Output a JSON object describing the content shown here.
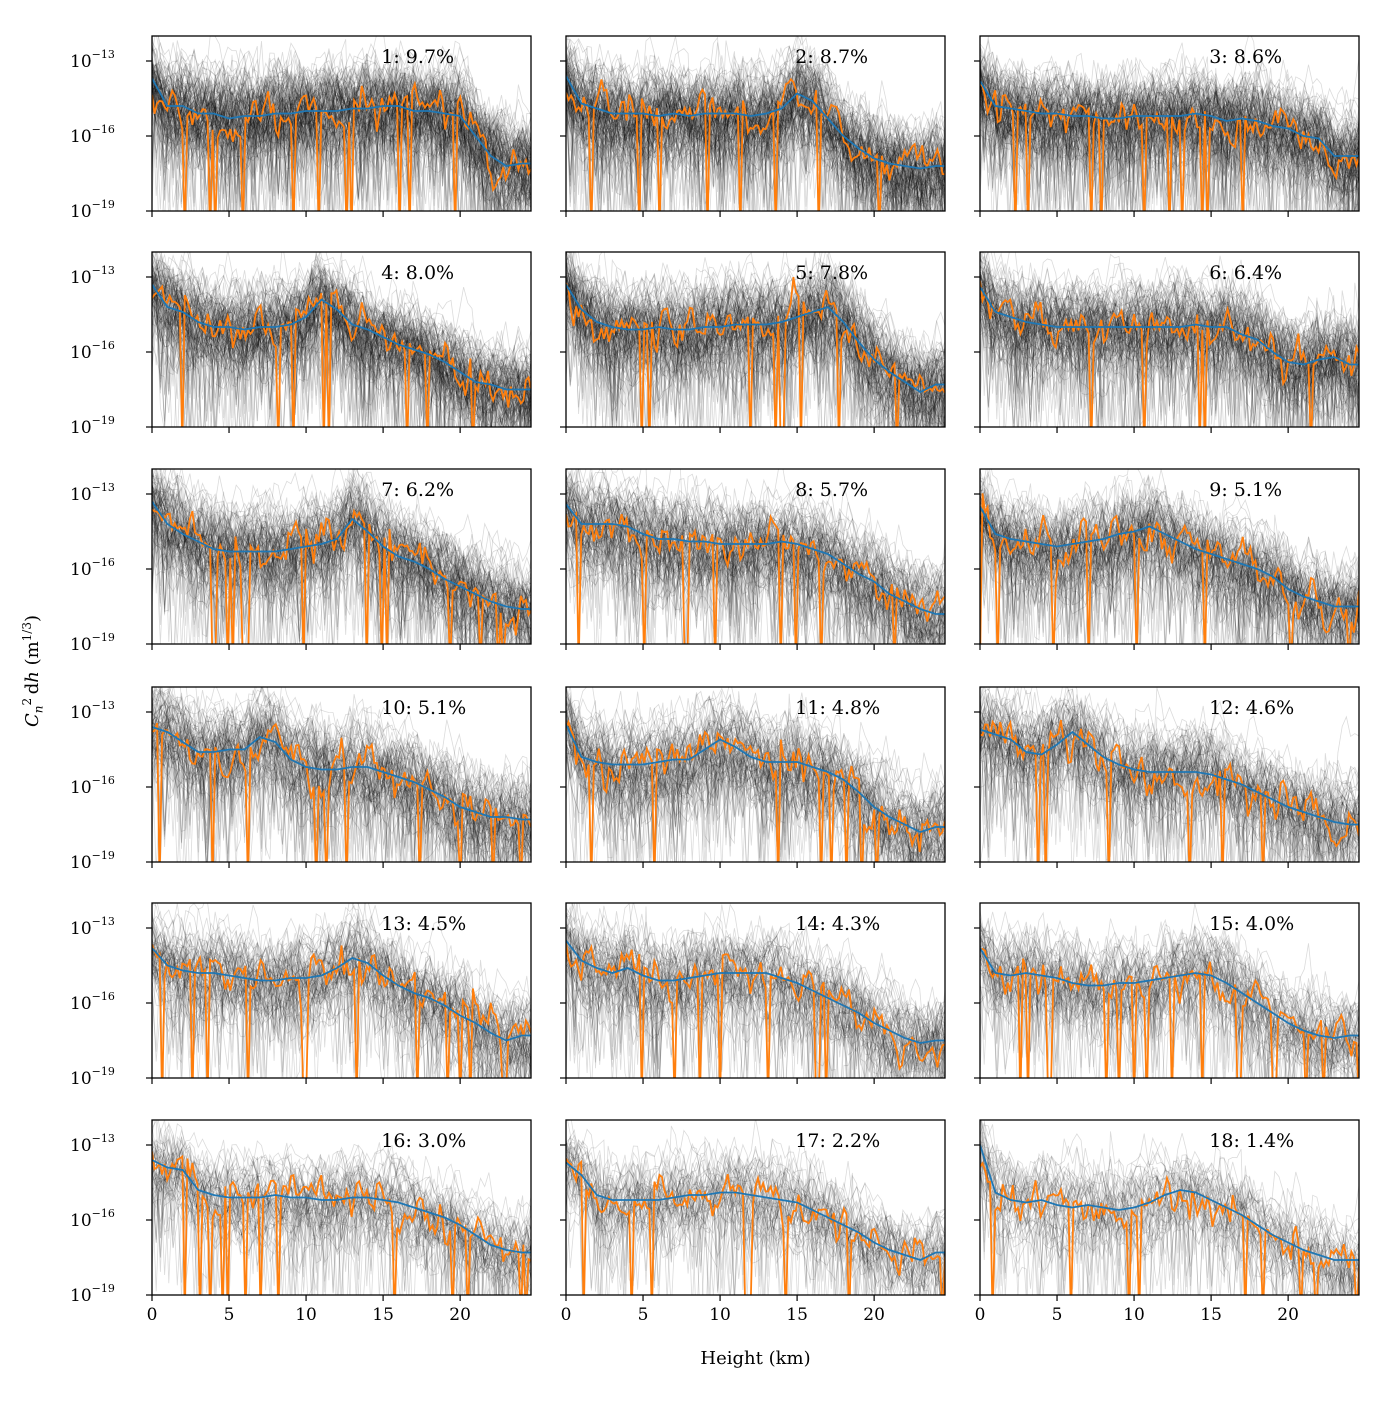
{
  "chart_data": {
    "type": "line",
    "layout": "6x3 grid of panels, shared axes",
    "xlabel": "Height (km)",
    "ylabel": "C_n^2 dh (m^1/3)",
    "xlim": [
      0,
      24.6
    ],
    "yscale": "log",
    "ylim": [
      1e-19,
      1e-12
    ],
    "yticks": [
      1e-19,
      1e-16,
      1e-13
    ],
    "xticks": [
      0,
      5,
      10,
      15,
      20
    ],
    "tick_label_base": "10",
    "ytick_exponents": [
      "−19",
      "−16",
      "−13"
    ],
    "series_colors": {
      "ensemble": "#000000",
      "mean": "#1f77b4",
      "example": "#ff7f0e"
    },
    "panels": [
      {
        "label": "1: 9.7%",
        "mean_log10": [
          -13.7,
          -14.8,
          -14.8,
          -15.1,
          -15.1,
          -15.3,
          -15.2,
          -15.2,
          -15.1,
          -15.1,
          -15.0,
          -15.0,
          -15.0,
          -14.9,
          -14.9,
          -14.8,
          -14.8,
          -15.0,
          -15.0,
          -15.1,
          -15.2,
          -16.0,
          -16.8,
          -17.2,
          -17.1
        ]
      },
      {
        "label": "2: 8.7%",
        "mean_log10": [
          -13.6,
          -14.7,
          -14.9,
          -15.1,
          -15.1,
          -15.1,
          -15.2,
          -15.1,
          -15.2,
          -15.1,
          -15.1,
          -15.1,
          -15.2,
          -15.1,
          -14.9,
          -14.3,
          -14.6,
          -15.3,
          -16.0,
          -16.5,
          -16.9,
          -17.1,
          -17.2,
          -17.3,
          -17.2
        ]
      },
      {
        "label": "3: 8.6%",
        "mean_log10": [
          -13.8,
          -14.8,
          -14.9,
          -15.0,
          -15.1,
          -15.1,
          -15.2,
          -15.2,
          -15.3,
          -15.3,
          -15.2,
          -15.2,
          -15.2,
          -15.2,
          -15.1,
          -15.2,
          -15.4,
          -15.3,
          -15.4,
          -15.6,
          -15.7,
          -16.0,
          -16.1,
          -16.8,
          -16.8
        ]
      },
      {
        "label": "4: 8.0%",
        "mean_log10": [
          -13.3,
          -14.2,
          -14.4,
          -14.8,
          -15.0,
          -15.0,
          -15.1,
          -15.0,
          -15.0,
          -14.9,
          -14.6,
          -13.9,
          -14.3,
          -14.9,
          -15.1,
          -15.4,
          -15.7,
          -15.9,
          -16.1,
          -16.4,
          -16.8,
          -17.2,
          -17.3,
          -17.5,
          -17.5
        ]
      },
      {
        "label": "5: 7.8%",
        "mean_log10": [
          -13.3,
          -14.3,
          -14.8,
          -15.0,
          -15.1,
          -15.1,
          -15.0,
          -15.1,
          -15.1,
          -15.0,
          -15.0,
          -14.9,
          -14.9,
          -14.9,
          -14.8,
          -14.6,
          -14.4,
          -14.2,
          -14.8,
          -15.6,
          -16.3,
          -16.8,
          -17.2,
          -17.6,
          -17.3
        ]
      },
      {
        "label": "6: 6.4%",
        "mean_log10": [
          -13.4,
          -14.4,
          -14.6,
          -14.8,
          -14.9,
          -15.0,
          -15.0,
          -15.0,
          -15.0,
          -15.0,
          -15.0,
          -15.0,
          -15.0,
          -15.0,
          -14.9,
          -15.0,
          -15.0,
          -15.3,
          -15.5,
          -16.0,
          -16.4,
          -16.5,
          -16.3,
          -16.2,
          -16.5
        ]
      },
      {
        "label": "7: 6.2%",
        "mean_log10": [
          -13.3,
          -14.2,
          -14.6,
          -14.9,
          -15.2,
          -15.3,
          -15.3,
          -15.3,
          -15.3,
          -15.2,
          -15.1,
          -15.0,
          -14.8,
          -14.0,
          -14.5,
          -15.1,
          -15.5,
          -15.7,
          -16.0,
          -16.4,
          -16.7,
          -17.0,
          -17.3,
          -17.5,
          -17.6
        ]
      },
      {
        "label": "8: 5.7%",
        "mean_log10": [
          -13.4,
          -14.2,
          -14.2,
          -14.2,
          -14.3,
          -14.6,
          -14.8,
          -14.8,
          -14.9,
          -14.9,
          -15.0,
          -15.0,
          -15.0,
          -15.0,
          -14.9,
          -15.0,
          -15.2,
          -15.4,
          -15.8,
          -16.2,
          -16.5,
          -17.0,
          -17.3,
          -17.6,
          -17.8
        ]
      },
      {
        "label": "9: 5.1%",
        "mean_log10": [
          -13.5,
          -14.6,
          -14.8,
          -14.9,
          -15.0,
          -15.1,
          -15.0,
          -14.9,
          -14.8,
          -14.6,
          -14.5,
          -14.3,
          -14.6,
          -14.9,
          -15.2,
          -15.4,
          -15.6,
          -15.8,
          -16.0,
          -16.3,
          -16.8,
          -17.1,
          -17.3,
          -17.5,
          -17.5
        ]
      },
      {
        "label": "10: 5.1%",
        "mean_log10": [
          -13.6,
          -13.8,
          -14.2,
          -14.6,
          -14.6,
          -14.5,
          -14.5,
          -14.0,
          -14.2,
          -14.9,
          -15.2,
          -15.3,
          -15.3,
          -15.2,
          -15.2,
          -15.4,
          -15.6,
          -15.8,
          -16.1,
          -16.4,
          -16.8,
          -17.0,
          -17.2,
          -17.2,
          -17.3
        ]
      },
      {
        "label": "11: 4.8%",
        "mean_log10": [
          -13.5,
          -14.8,
          -15.0,
          -15.1,
          -15.1,
          -15.1,
          -15.0,
          -14.9,
          -14.9,
          -14.5,
          -14.1,
          -14.4,
          -14.8,
          -15.0,
          -15.0,
          -15.0,
          -15.2,
          -15.4,
          -15.7,
          -16.2,
          -16.8,
          -17.2,
          -17.5,
          -17.8,
          -17.6
        ]
      },
      {
        "label": "12: 4.6%",
        "mean_log10": [
          -13.7,
          -13.9,
          -14.1,
          -14.6,
          -14.7,
          -14.3,
          -13.8,
          -14.3,
          -14.8,
          -15.1,
          -15.3,
          -15.4,
          -15.4,
          -15.4,
          -15.4,
          -15.5,
          -15.7,
          -15.9,
          -16.2,
          -16.5,
          -16.8,
          -17.0,
          -17.2,
          -17.4,
          -17.5
        ]
      },
      {
        "label": "13: 4.5%",
        "mean_log10": [
          -13.8,
          -14.5,
          -14.7,
          -14.8,
          -14.8,
          -14.9,
          -15.0,
          -15.1,
          -15.1,
          -15.0,
          -15.0,
          -14.9,
          -14.6,
          -14.2,
          -14.4,
          -14.9,
          -15.3,
          -15.6,
          -15.8,
          -16.1,
          -16.5,
          -16.8,
          -17.2,
          -17.5,
          -17.3
        ]
      },
      {
        "label": "14: 4.3%",
        "mean_log10": [
          -13.5,
          -14.3,
          -14.6,
          -14.8,
          -14.6,
          -14.9,
          -15.1,
          -15.1,
          -15.0,
          -14.9,
          -14.8,
          -14.8,
          -14.8,
          -14.8,
          -15.0,
          -15.2,
          -15.5,
          -15.8,
          -16.1,
          -16.4,
          -16.8,
          -17.1,
          -17.4,
          -17.6,
          -17.5
        ]
      },
      {
        "label": "15: 4.0%",
        "mean_log10": [
          -13.8,
          -14.8,
          -14.9,
          -14.8,
          -14.9,
          -15.0,
          -15.2,
          -15.3,
          -15.3,
          -15.2,
          -15.2,
          -15.1,
          -15.0,
          -14.9,
          -14.8,
          -14.9,
          -15.2,
          -15.6,
          -16.0,
          -16.4,
          -16.8,
          -17.1,
          -17.3,
          -17.4,
          -17.3
        ]
      },
      {
        "label": "16: 3.0%",
        "mean_log10": [
          -13.6,
          -13.9,
          -14.0,
          -14.8,
          -15.0,
          -15.1,
          -15.1,
          -15.1,
          -15.0,
          -15.1,
          -15.1,
          -15.2,
          -15.2,
          -15.1,
          -15.1,
          -15.2,
          -15.3,
          -15.5,
          -15.7,
          -15.9,
          -16.2,
          -16.6,
          -17.0,
          -17.2,
          -17.3
        ]
      },
      {
        "label": "17: 2.2%",
        "mean_log10": [
          -13.7,
          -14.2,
          -15.0,
          -15.2,
          -15.2,
          -15.2,
          -15.2,
          -15.1,
          -15.0,
          -15.0,
          -14.9,
          -14.9,
          -15.0,
          -15.1,
          -15.2,
          -15.3,
          -15.6,
          -15.9,
          -16.2,
          -16.5,
          -16.9,
          -17.2,
          -17.4,
          -17.6,
          -17.3
        ]
      },
      {
        "label": "18: 1.4%",
        "mean_log10": [
          -13.0,
          -14.9,
          -15.2,
          -15.3,
          -15.2,
          -15.4,
          -15.5,
          -15.4,
          -15.5,
          -15.6,
          -15.5,
          -15.3,
          -15.0,
          -14.8,
          -14.9,
          -15.2,
          -15.5,
          -15.8,
          -16.2,
          -16.6,
          -16.9,
          -17.2,
          -17.4,
          -17.6,
          -17.6
        ]
      }
    ]
  }
}
